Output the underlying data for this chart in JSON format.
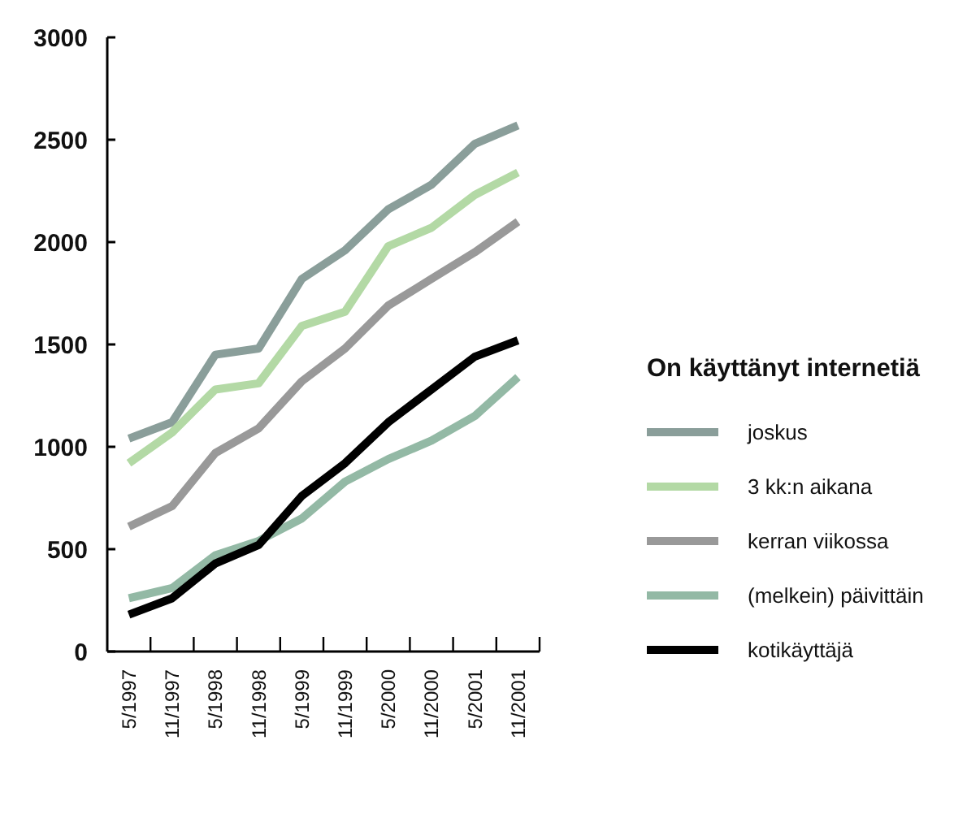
{
  "chart_data": {
    "type": "line",
    "legend_title": "On käyttänyt internetiä",
    "categories": [
      "5/1997",
      "11/1997",
      "5/1998",
      "11/1998",
      "5/1999",
      "11/1999",
      "5/2000",
      "11/2000",
      "5/2001",
      "11/2001"
    ],
    "series": [
      {
        "name": "joskus",
        "color": "#8a9e9a",
        "values": [
          1040,
          1120,
          1450,
          1480,
          1820,
          1960,
          2160,
          2280,
          2480,
          2570
        ]
      },
      {
        "name": "3 kk:n aikana",
        "color": "#b3d9a5",
        "values": [
          920,
          1070,
          1280,
          1310,
          1590,
          1660,
          1980,
          2070,
          2230,
          2340
        ]
      },
      {
        "name": "kerran viikossa",
        "color": "#999999",
        "values": [
          610,
          710,
          970,
          1090,
          1320,
          1480,
          1690,
          1820,
          1950,
          2100
        ]
      },
      {
        "name": "(melkein) päivittäin",
        "color": "#93b9a5",
        "values": [
          260,
          310,
          470,
          540,
          650,
          830,
          940,
          1030,
          1150,
          1340
        ]
      },
      {
        "name": "kotikäyttäjä",
        "color": "#000000",
        "values": [
          180,
          260,
          430,
          520,
          760,
          920,
          1120,
          1280,
          1440,
          1520
        ]
      }
    ],
    "ylim": [
      0,
      3000
    ],
    "yticks": [
      0,
      500,
      1000,
      1500,
      2000,
      2500,
      3000
    ],
    "legend": "right",
    "line_style": "solid"
  }
}
